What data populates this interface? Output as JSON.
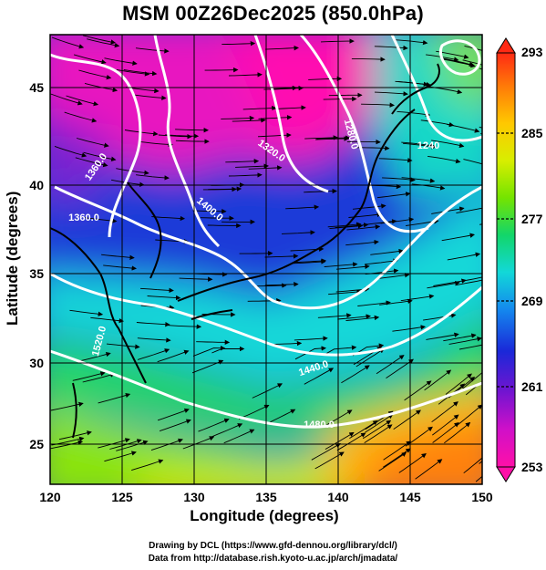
{
  "title": "MSM 00Z26Dec2025 (850.0hPa)",
  "axes": {
    "xlabel": "Longitude (degrees)",
    "ylabel": "Latitude  (degrees)",
    "x_ticks": [
      "120",
      "125",
      "130",
      "135",
      "140",
      "145",
      "150"
    ],
    "y_ticks": [
      "25",
      "30",
      "35",
      "40",
      "45"
    ],
    "xlim": [
      120,
      150
    ],
    "ylim": [
      22.5,
      47.5
    ]
  },
  "colorbar": {
    "labels": [
      "293",
      "285",
      "277",
      "269",
      "261",
      "253"
    ],
    "range": [
      253,
      293
    ],
    "colors": [
      "#ff2a14",
      "#ff7a08",
      "#ffc800",
      "#d8ee00",
      "#74e400",
      "#12d66a",
      "#12d8d8",
      "#1488ee",
      "#1a28d8",
      "#7414d0",
      "#d010c8",
      "#ff10a8"
    ]
  },
  "contours": {
    "labels": [
      "1240",
      "1280.0",
      "1320.0",
      "1360.0",
      "1400.0",
      "1440.0",
      "1480.0",
      "1520.0"
    ],
    "color": "#ffffff"
  },
  "credits": [
    "Drawing by DCL (https://www.gfd-dennou.org/library/dcl/)",
    "Data from http://database.rish.kyoto-u.ac.jp/arch/jmadata/"
  ]
}
